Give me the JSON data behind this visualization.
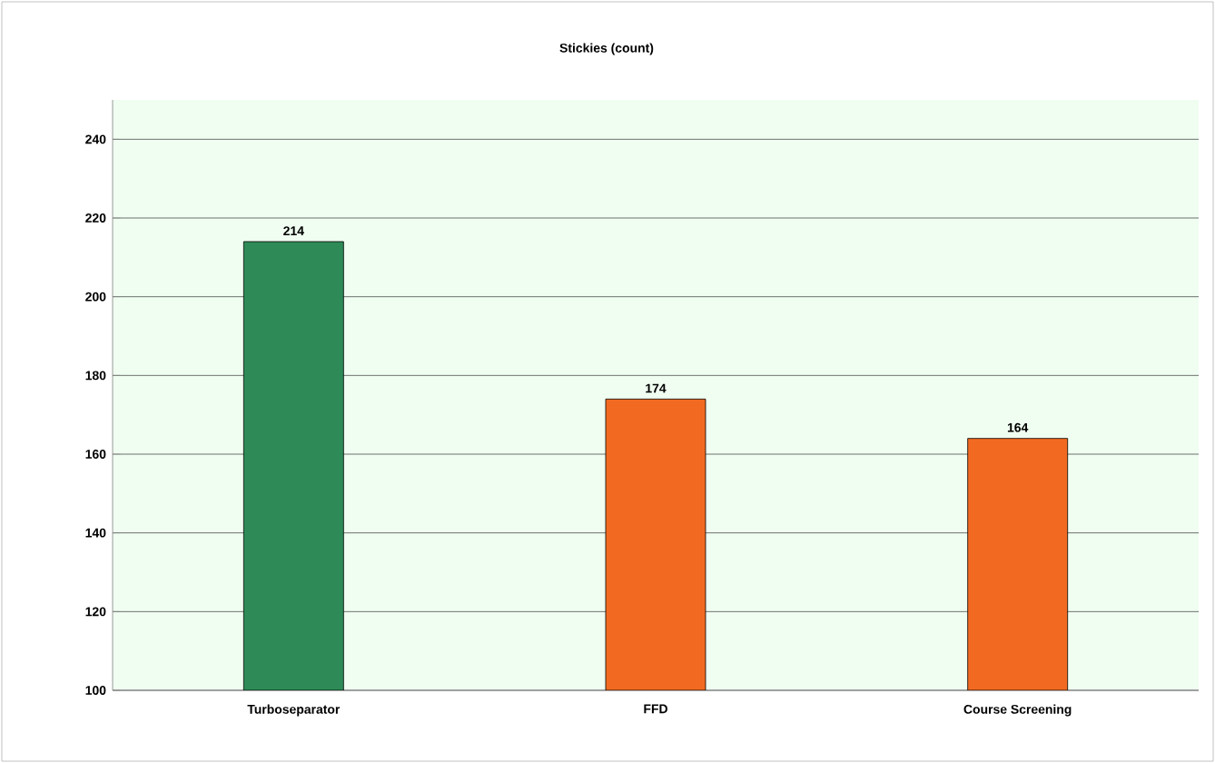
{
  "chart_data": {
    "type": "bar",
    "title": "Stickies (count)",
    "categories": [
      "Turboseparator",
      "FFD",
      "Course Screening"
    ],
    "values": [
      214,
      174,
      164
    ],
    "colors": [
      "#2e8b57",
      "#f26a21",
      "#f26a21"
    ],
    "ylim": [
      100,
      250
    ],
    "yticks": [
      100,
      120,
      140,
      160,
      180,
      200,
      220,
      240
    ],
    "grid": "y",
    "data_labels": true
  }
}
